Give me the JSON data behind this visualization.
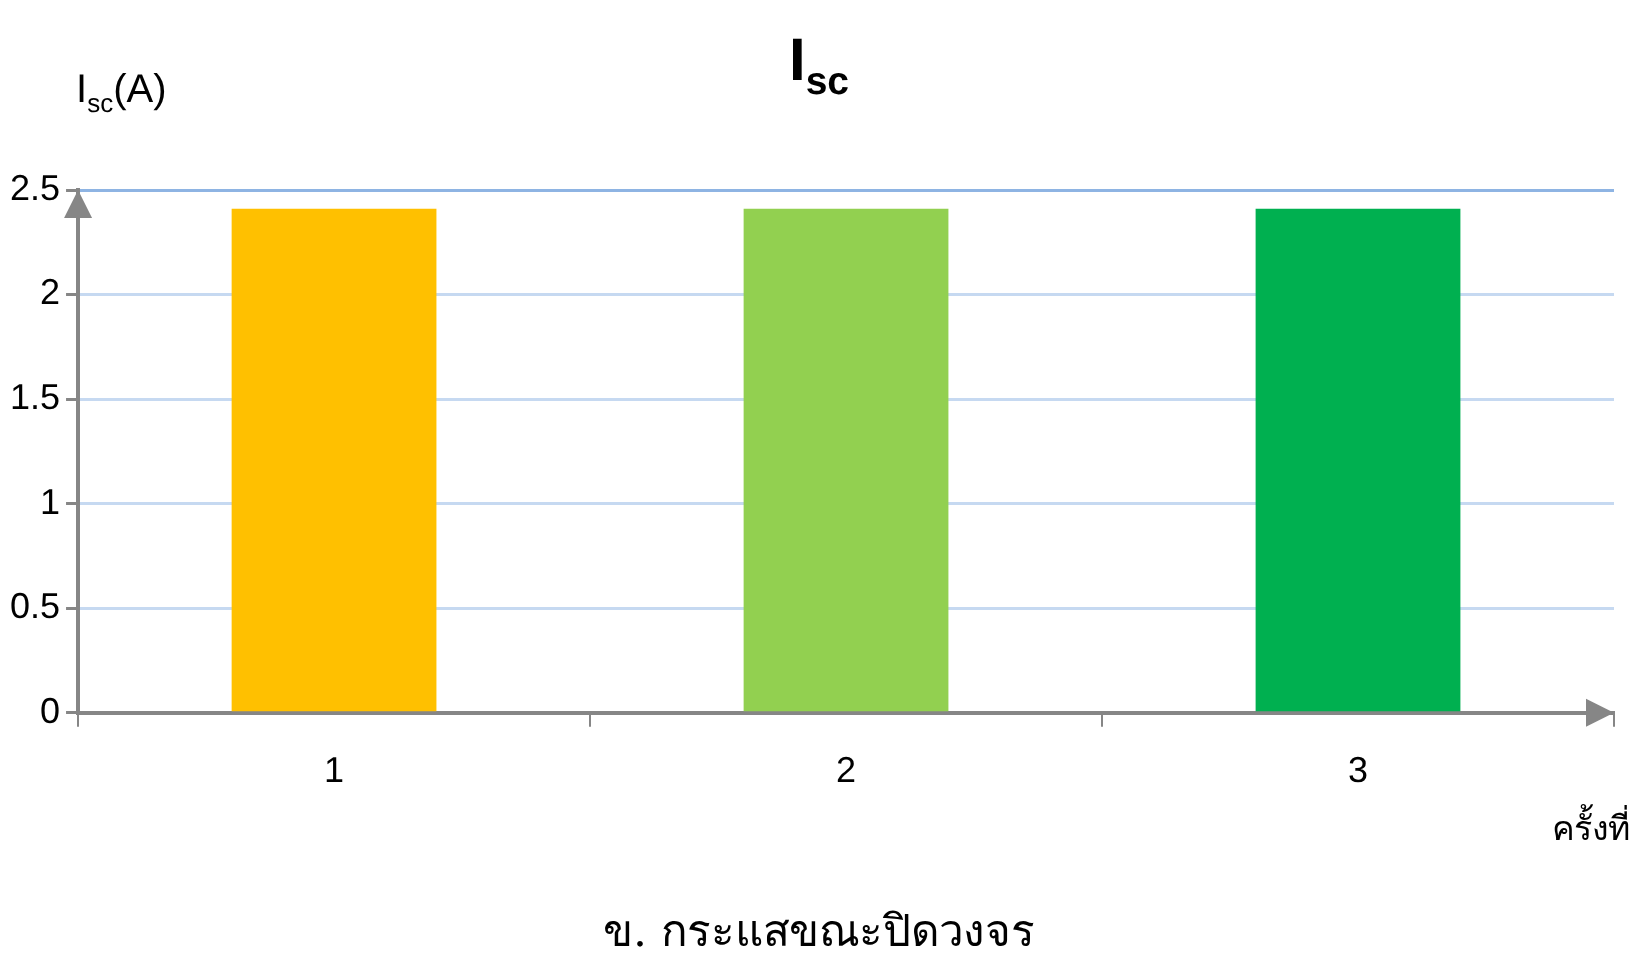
{
  "chart_data": {
    "type": "bar",
    "title": "I$_{sc}$",
    "ylabel": "I$_{sc}$(A)",
    "xlabel": "ครั้งที่",
    "categories": [
      "1",
      "2",
      "3"
    ],
    "values": [
      2.41,
      2.41,
      2.41
    ],
    "colors": [
      "#ffc000",
      "#92d050",
      "#00b050"
    ],
    "ylim": [
      0,
      2.5
    ],
    "yticks": [
      0,
      0.5,
      1,
      1.5,
      2,
      2.5
    ],
    "grid": "y",
    "annotations": [
      "ข. กระแสขณะปิดวงจร"
    ]
  }
}
